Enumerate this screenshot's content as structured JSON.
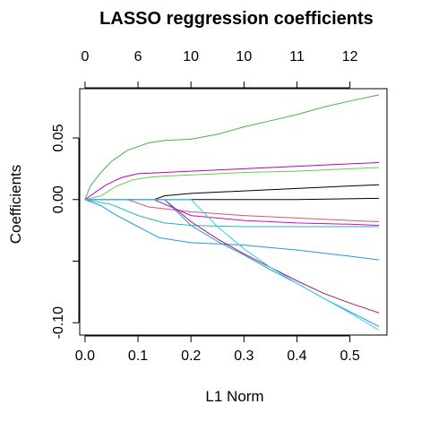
{
  "chart_data": {
    "type": "line",
    "title": "LASSO reggression coefficients",
    "xlabel": "L1 Norm",
    "ylabel": "Coefficients",
    "xlim": [
      -0.01,
      0.57
    ],
    "ylim": [
      -0.11,
      0.09
    ],
    "x_ticks": [
      {
        "value": 0.0,
        "label": "0.0"
      },
      {
        "value": 0.1,
        "label": "0.1"
      },
      {
        "value": 0.2,
        "label": "0.2"
      },
      {
        "value": 0.3,
        "label": "0.3"
      },
      {
        "value": 0.4,
        "label": "0.4"
      },
      {
        "value": 0.5,
        "label": "0.5"
      }
    ],
    "y_ticks": [
      {
        "value": 0.05,
        "label": "0.05"
      },
      {
        "value": 0.0,
        "label": "0.00"
      },
      {
        "value": -0.05,
        "label": ""
      },
      {
        "value": -0.1,
        "label": "-0.10"
      }
    ],
    "top_ticks": [
      {
        "value": 0.0,
        "label": "0"
      },
      {
        "value": 0.1,
        "label": "6"
      },
      {
        "value": 0.2,
        "label": "10"
      },
      {
        "value": 0.3,
        "label": "10"
      },
      {
        "value": 0.4,
        "label": "11"
      },
      {
        "value": 0.5,
        "label": "12"
      }
    ],
    "grid": false,
    "legend": "none",
    "series": [
      {
        "color": "#4daf4a",
        "points": [
          [
            0,
            0
          ],
          [
            0.01,
            0.011
          ],
          [
            0.03,
            0.022
          ],
          [
            0.05,
            0.031
          ],
          [
            0.08,
            0.04
          ],
          [
            0.12,
            0.046
          ],
          [
            0.15,
            0.048
          ],
          [
            0.2,
            0.049
          ],
          [
            0.25,
            0.053
          ],
          [
            0.3,
            0.059
          ],
          [
            0.35,
            0.064
          ],
          [
            0.4,
            0.069
          ],
          [
            0.45,
            0.075
          ],
          [
            0.5,
            0.08
          ],
          [
            0.555,
            0.085
          ]
        ]
      },
      {
        "color": "#bf00bf",
        "points": [
          [
            0,
            0
          ],
          [
            0.02,
            0.006
          ],
          [
            0.04,
            0.012
          ],
          [
            0.07,
            0.018
          ],
          [
            0.1,
            0.021
          ],
          [
            0.15,
            0.022
          ],
          [
            0.2,
            0.023
          ],
          [
            0.25,
            0.024
          ],
          [
            0.3,
            0.025
          ],
          [
            0.4,
            0.027
          ],
          [
            0.5,
            0.029
          ],
          [
            0.555,
            0.03
          ]
        ]
      },
      {
        "color": "#61d04f",
        "points": [
          [
            0,
            0
          ],
          [
            0.03,
            0.003
          ],
          [
            0.06,
            0.011
          ],
          [
            0.09,
            0.016
          ],
          [
            0.12,
            0.018
          ],
          [
            0.15,
            0.019
          ],
          [
            0.2,
            0.02
          ],
          [
            0.3,
            0.022
          ],
          [
            0.4,
            0.023
          ],
          [
            0.5,
            0.025
          ],
          [
            0.555,
            0.026
          ]
        ]
      },
      {
        "color": "#000000",
        "points": [
          [
            0,
            0
          ],
          [
            0.13,
            0.0
          ],
          [
            0.15,
            0.003
          ],
          [
            0.2,
            0.005
          ],
          [
            0.3,
            0.007
          ],
          [
            0.4,
            0.009
          ],
          [
            0.5,
            0.011
          ],
          [
            0.555,
            0.012
          ]
        ]
      },
      {
        "color": "#000000",
        "points": [
          [
            0,
            0
          ],
          [
            0.4,
            0.0
          ],
          [
            0.555,
            0.001
          ]
        ]
      },
      {
        "color": "#df536b",
        "points": [
          [
            0,
            0
          ],
          [
            0.08,
            0.0
          ],
          [
            0.12,
            -0.006
          ],
          [
            0.2,
            -0.01
          ],
          [
            0.3,
            -0.013
          ],
          [
            0.4,
            -0.015
          ],
          [
            0.5,
            -0.017
          ],
          [
            0.555,
            -0.018
          ]
        ]
      },
      {
        "color": "#cd0bbc",
        "points": [
          [
            0,
            0
          ],
          [
            0.13,
            0.0
          ],
          [
            0.2,
            -0.013
          ],
          [
            0.3,
            -0.017
          ],
          [
            0.4,
            -0.019
          ],
          [
            0.5,
            -0.02
          ],
          [
            0.555,
            -0.021
          ]
        ]
      },
      {
        "color": "#28b6b6",
        "points": [
          [
            0,
            0
          ],
          [
            0.05,
            -0.004
          ],
          [
            0.1,
            -0.013
          ],
          [
            0.15,
            -0.019
          ],
          [
            0.2,
            -0.021
          ],
          [
            0.3,
            -0.022
          ],
          [
            0.555,
            -0.022
          ]
        ]
      },
      {
        "color": "#2297e6",
        "points": [
          [
            0,
            0
          ],
          [
            0.03,
            -0.005
          ],
          [
            0.06,
            -0.013
          ],
          [
            0.1,
            -0.022
          ],
          [
            0.14,
            -0.031
          ],
          [
            0.2,
            -0.035
          ],
          [
            0.3,
            -0.037
          ],
          [
            0.4,
            -0.041
          ],
          [
            0.5,
            -0.046
          ],
          [
            0.555,
            -0.049
          ]
        ]
      },
      {
        "color": "#a8196b",
        "points": [
          [
            0,
            0
          ],
          [
            0.15,
            0.0
          ],
          [
            0.2,
            -0.018
          ],
          [
            0.25,
            -0.032
          ],
          [
            0.3,
            -0.044
          ],
          [
            0.35,
            -0.055
          ],
          [
            0.4,
            -0.066
          ],
          [
            0.45,
            -0.076
          ],
          [
            0.5,
            -0.084
          ],
          [
            0.555,
            -0.092
          ]
        ]
      },
      {
        "color": "#2297e6",
        "points": [
          [
            0,
            0
          ],
          [
            0.15,
            0.0
          ],
          [
            0.2,
            -0.021
          ],
          [
            0.25,
            -0.034
          ],
          [
            0.3,
            -0.045
          ],
          [
            0.35,
            -0.057
          ],
          [
            0.4,
            -0.068
          ],
          [
            0.45,
            -0.08
          ],
          [
            0.5,
            -0.091
          ],
          [
            0.555,
            -0.103
          ]
        ]
      },
      {
        "color": "#2fd4e8",
        "points": [
          [
            0,
            0
          ],
          [
            0.2,
            0.0
          ],
          [
            0.25,
            -0.022
          ],
          [
            0.3,
            -0.04
          ],
          [
            0.35,
            -0.055
          ],
          [
            0.4,
            -0.068
          ],
          [
            0.45,
            -0.08
          ],
          [
            0.5,
            -0.092
          ],
          [
            0.555,
            -0.106
          ]
        ]
      }
    ]
  }
}
